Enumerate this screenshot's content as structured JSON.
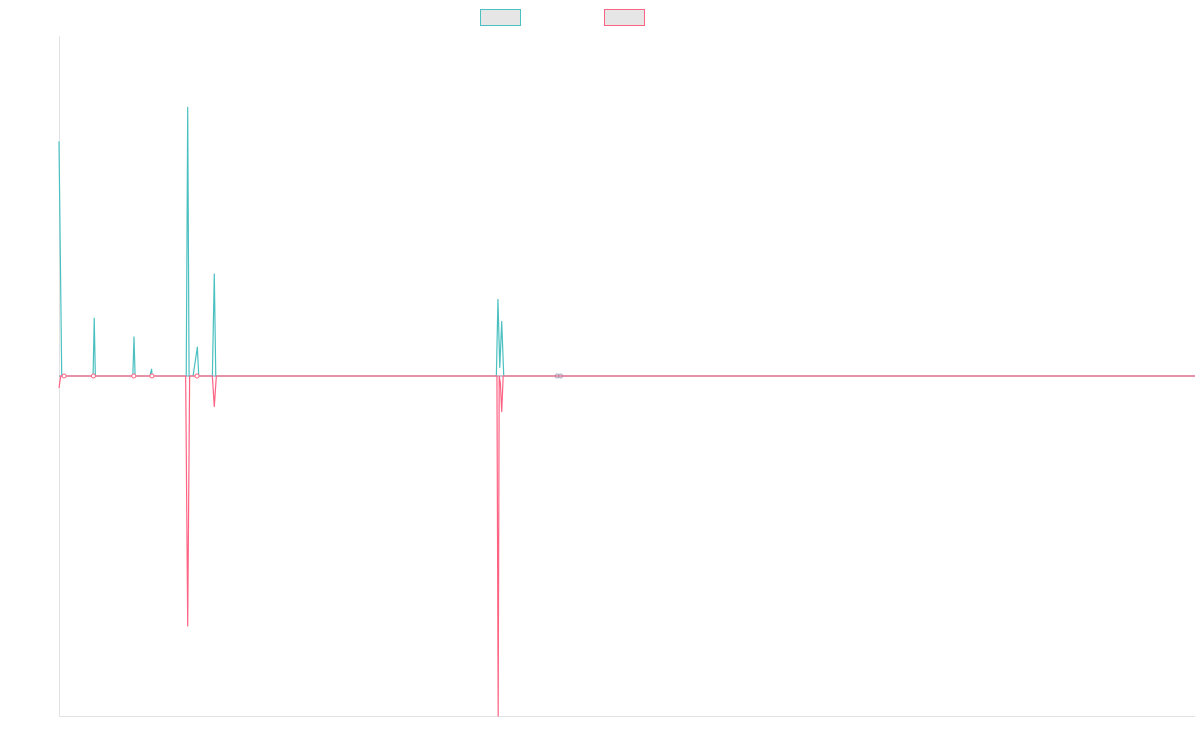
{
  "chart_data": {
    "type": "line",
    "title": "",
    "xlabel": "",
    "ylabel": "",
    "x_range": [
      0,
      1000
    ],
    "ylim": [
      -100,
      100
    ],
    "grid": false,
    "legend": "top-center",
    "series": [
      {
        "color": "#4bc0c0",
        "points": [
          [
            0,
            69
          ],
          [
            2.4,
            0
          ],
          [
            30,
            0
          ],
          [
            31,
            17
          ],
          [
            32,
            0
          ],
          [
            65,
            0
          ],
          [
            66,
            11.5
          ],
          [
            67,
            0
          ],
          [
            80,
            0
          ],
          [
            81.5,
            2
          ],
          [
            82,
            0
          ],
          [
            112,
            0
          ],
          [
            113.3,
            79
          ],
          [
            114.5,
            0
          ],
          [
            118,
            0
          ],
          [
            121.8,
            8.5
          ],
          [
            123,
            0
          ],
          [
            135,
            0
          ],
          [
            136.7,
            30
          ],
          [
            138,
            0
          ],
          [
            385,
            0
          ],
          [
            386.4,
            22.5
          ],
          [
            388,
            2.5
          ],
          [
            389.7,
            16
          ],
          [
            391.5,
            0
          ],
          [
            1000,
            0
          ]
        ]
      },
      {
        "color": "#ff6384",
        "points": [
          [
            0,
            -3.5
          ],
          [
            1.5,
            0
          ],
          [
            111.5,
            0
          ],
          [
            113.3,
            -73.5
          ],
          [
            115,
            0
          ],
          [
            135,
            0
          ],
          [
            136.7,
            -9
          ],
          [
            138.5,
            0
          ],
          [
            385.5,
            0
          ],
          [
            386.6,
            -100
          ],
          [
            387.5,
            0
          ],
          [
            388.5,
            -2
          ],
          [
            389.7,
            -10.5
          ],
          [
            391,
            0
          ],
          [
            1000,
            0
          ]
        ],
        "markers": [
          [
            4.5,
            0
          ],
          [
            30.3,
            0
          ],
          [
            65.8,
            0
          ],
          [
            81.8,
            0
          ],
          [
            121.5,
            0
          ]
        ]
      },
      {
        "color": "#9aa7c7",
        "points": [
          [
            0,
            0
          ],
          [
            1000,
            0
          ]
        ],
        "markers": [
          [
            438.5,
            0
          ],
          [
            441.5,
            0
          ]
        ]
      }
    ]
  }
}
